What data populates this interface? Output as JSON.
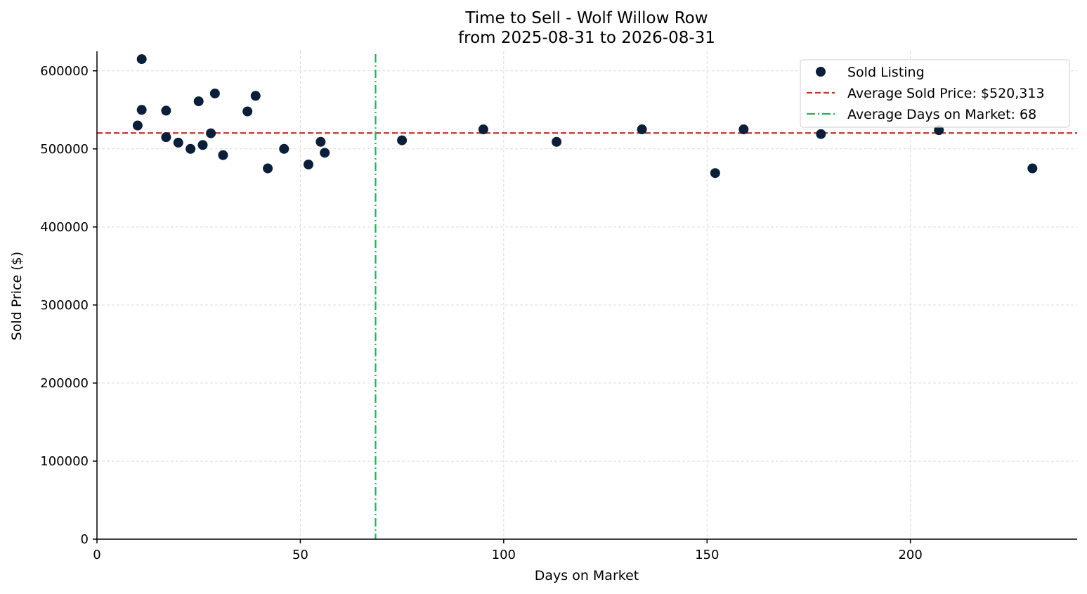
{
  "chart_data": {
    "type": "scatter",
    "title": "Time to Sell - Wolf Willow Row",
    "subtitle": "from 2025-08-31 to 2026-08-31",
    "xlabel": "Days on Market",
    "ylabel": "Sold Price ($)",
    "xlim": [
      0,
      241
    ],
    "ylim": [
      0,
      625000
    ],
    "xticks": [
      0,
      50,
      100,
      150,
      200
    ],
    "yticks": [
      0,
      100000,
      200000,
      300000,
      400000,
      500000,
      600000
    ],
    "grid": true,
    "legend_position": "top-right",
    "series": [
      {
        "name": "Sold Listing",
        "color": "#0b1f3a",
        "points": [
          {
            "x": 10,
            "y": 530000
          },
          {
            "x": 11,
            "y": 615000
          },
          {
            "x": 11,
            "y": 550000
          },
          {
            "x": 17,
            "y": 549000
          },
          {
            "x": 17,
            "y": 515000
          },
          {
            "x": 20,
            "y": 508000
          },
          {
            "x": 23,
            "y": 500000
          },
          {
            "x": 25,
            "y": 561000
          },
          {
            "x": 26,
            "y": 505000
          },
          {
            "x": 28,
            "y": 520000
          },
          {
            "x": 29,
            "y": 571000
          },
          {
            "x": 31,
            "y": 492000
          },
          {
            "x": 37,
            "y": 548000
          },
          {
            "x": 39,
            "y": 568000
          },
          {
            "x": 42,
            "y": 475000
          },
          {
            "x": 46,
            "y": 500000
          },
          {
            "x": 52,
            "y": 480000
          },
          {
            "x": 55,
            "y": 509000
          },
          {
            "x": 56,
            "y": 495000
          },
          {
            "x": 75,
            "y": 511000
          },
          {
            "x": 95,
            "y": 525000
          },
          {
            "x": 113,
            "y": 509000
          },
          {
            "x": 134,
            "y": 525000
          },
          {
            "x": 152,
            "y": 469000
          },
          {
            "x": 159,
            "y": 525000
          },
          {
            "x": 178,
            "y": 519000
          },
          {
            "x": 207,
            "y": 524000
          },
          {
            "x": 230,
            "y": 475000
          }
        ]
      }
    ],
    "reference_lines": [
      {
        "orientation": "horizontal",
        "value": 520313,
        "name": "Average Sold Price: $520,313",
        "color": "#c0392b",
        "style": "dashed"
      },
      {
        "orientation": "vertical",
        "value": 68.5,
        "name": "Average Days on Market: 68",
        "color": "#27ae60",
        "style": "dashdot"
      }
    ],
    "legend": [
      {
        "label": "Sold Listing",
        "kind": "marker",
        "color": "#0b1f3a"
      },
      {
        "label": "Average Sold Price: $520,313",
        "kind": "dashed",
        "color": "#c0392b"
      },
      {
        "label": "Average Days on Market: 68",
        "kind": "dashdot",
        "color": "#27ae60"
      }
    ]
  }
}
